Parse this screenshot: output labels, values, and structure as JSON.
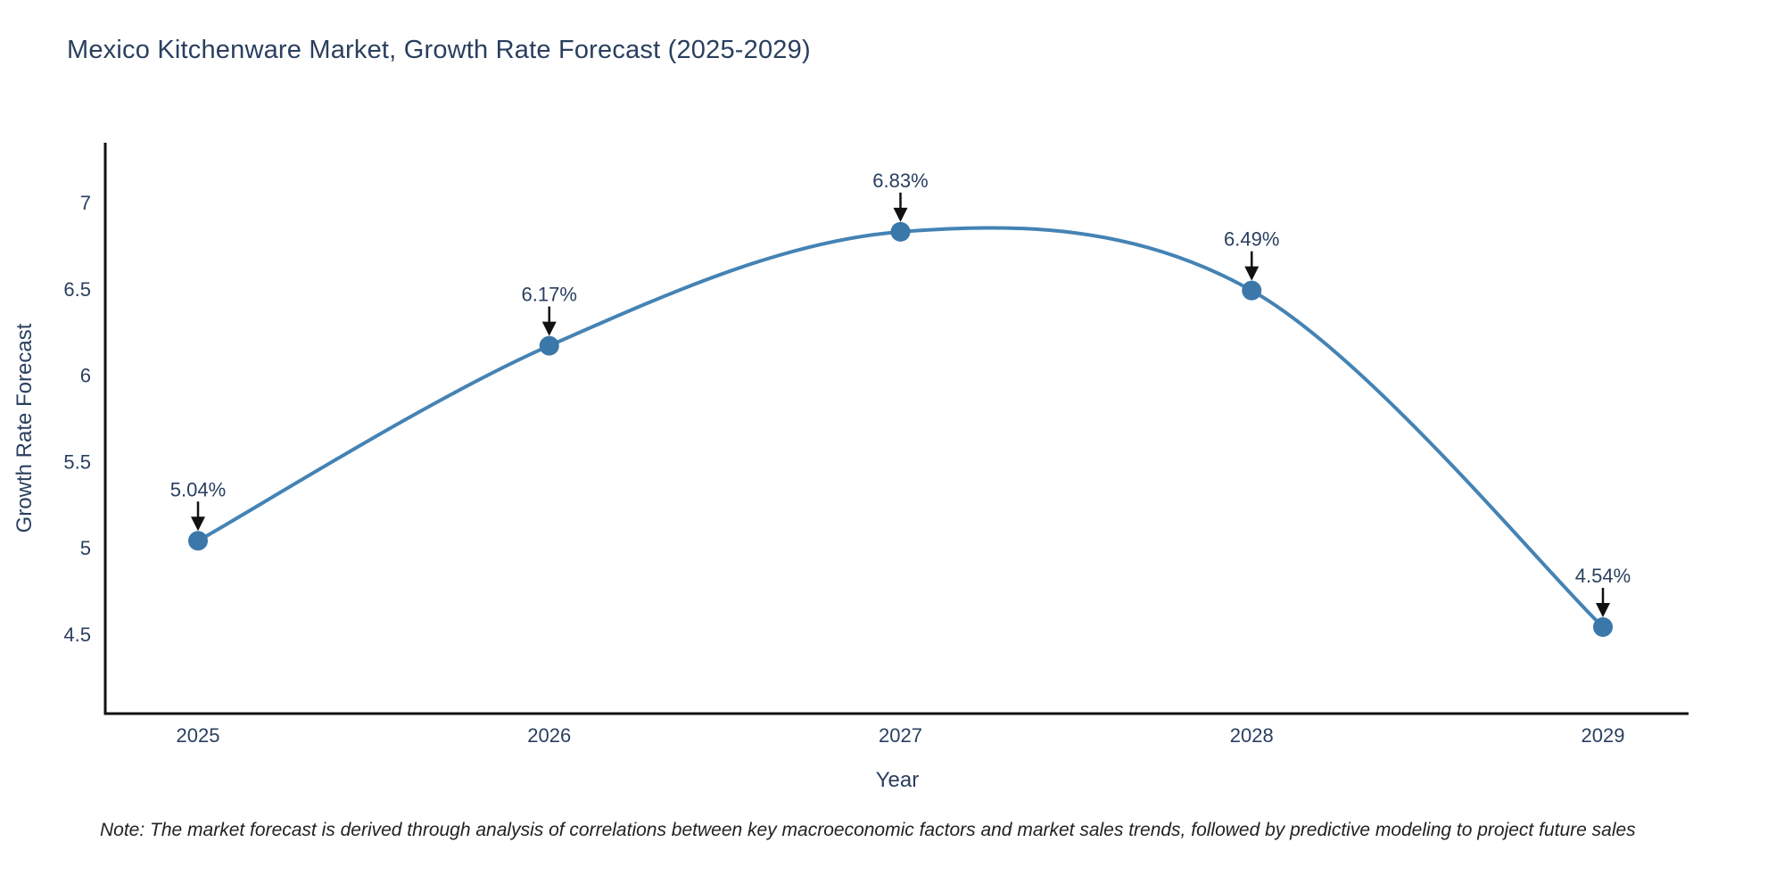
{
  "page": {
    "background": "#ffffff"
  },
  "chart_data": {
    "type": "line",
    "title": "Mexico Kitchenware Market, Growth Rate Forecast (2025-2029)",
    "xlabel": "Year",
    "ylabel": "Growth Rate Forecast",
    "x": [
      2025,
      2026,
      2027,
      2028,
      2029
    ],
    "y": [
      5.04,
      6.17,
      6.83,
      6.49,
      4.54
    ],
    "point_labels": [
      "5.04%",
      "6.17%",
      "6.83%",
      "6.49%",
      "4.54%"
    ],
    "x_tick_labels": [
      "2025",
      "2026",
      "2027",
      "2028",
      "2029"
    ],
    "y_ticks": [
      4.5,
      5,
      5.5,
      6,
      6.5,
      7
    ],
    "x_range": [
      2024.73,
      2029.24
    ],
    "y_range": [
      3.97,
      7.33
    ],
    "line_shape": "spline",
    "grid": false,
    "legend": "none",
    "annotations": "black arrows pointing down to each data point",
    "colors": {
      "line": "#4483b4",
      "marker": "#3b77a9",
      "axis": "#111111",
      "arrow": "#111111",
      "text": "#2a3f5f"
    }
  },
  "note": {
    "text": "Note: The market forecast is derived through analysis of correlations between key macroeconomic factors and market sales trends, followed by predictive modeling to project future sales"
  }
}
